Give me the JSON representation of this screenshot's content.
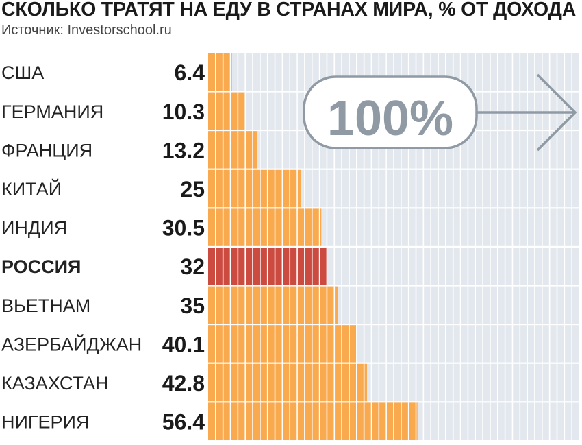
{
  "title": "СКОЛЬКО ТРАТЯТ НА ЕДУ В СТРАНАХ МИРА, % ОТ ДОХОДА",
  "source": "Источник: Investorschool.ru",
  "badge": "100%",
  "colors": {
    "bar": "#f9a94e",
    "highlight": "#cc4b41",
    "background_track": "#e3e8ee",
    "grid": "#ffffff",
    "badge": "#8f9aa4"
  },
  "chart_data": {
    "type": "bar",
    "orientation": "horizontal",
    "xlim": [
      0,
      100
    ],
    "categories": [
      "США",
      "ГЕРМАНИЯ",
      "ФРАНЦИЯ",
      "КИТАЙ",
      "ИНДИЯ",
      "РОССИЯ",
      "ВЬЕТНАМ",
      "АЗЕРБАЙДЖАН",
      "КАЗАХСТАН",
      "НИГЕРИЯ"
    ],
    "values": [
      6.4,
      10.3,
      13.2,
      25,
      30.5,
      32,
      35,
      40.1,
      42.8,
      56.4
    ],
    "value_labels": [
      "6.4",
      "10.3",
      "13.2",
      "25",
      "30.5",
      "32",
      "35",
      "40.1",
      "42.8",
      "56.4"
    ],
    "highlight": "РОССИЯ"
  }
}
